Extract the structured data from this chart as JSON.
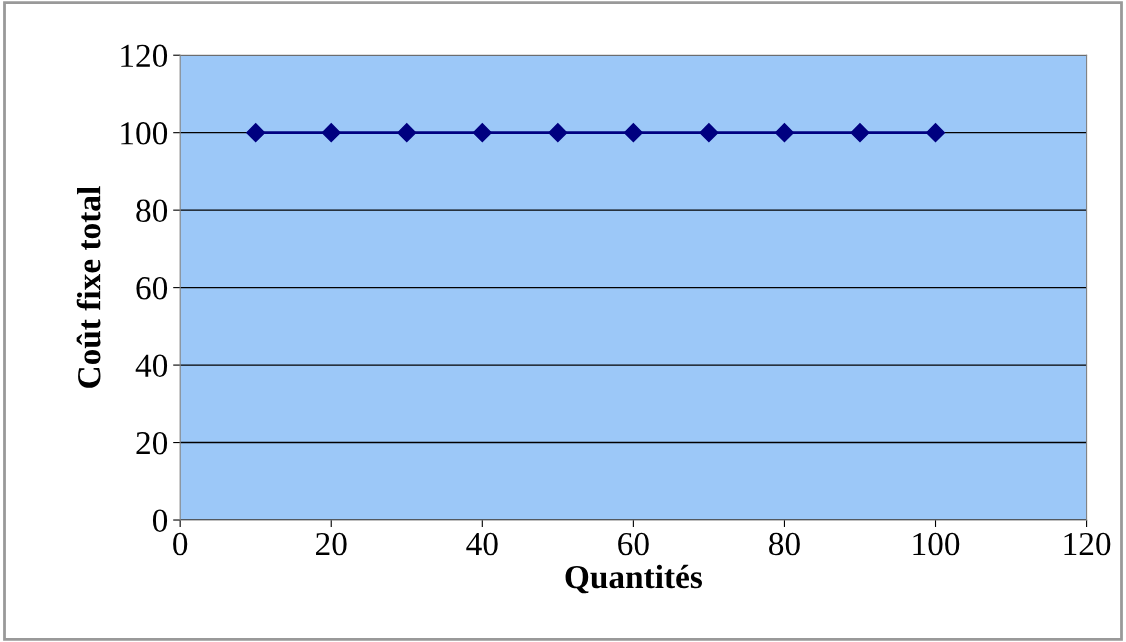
{
  "chart_data": {
    "type": "line",
    "xlabel": "Quantités",
    "ylabel": "Coût fixe total",
    "x": [
      10,
      20,
      30,
      40,
      50,
      60,
      70,
      80,
      90,
      100
    ],
    "series": [
      {
        "color": "#000080",
        "values": [
          100,
          100,
          100,
          100,
          100,
          100,
          100,
          100,
          100,
          100
        ]
      }
    ],
    "xlim": [
      0,
      120
    ],
    "xticks": [
      0,
      20,
      40,
      60,
      80,
      100,
      120
    ],
    "ylim": [
      0,
      120
    ],
    "yticks": [
      0,
      20,
      40,
      60,
      80,
      100,
      120
    ],
    "grid": "y",
    "marker": "diamond",
    "line_style": "solid"
  }
}
